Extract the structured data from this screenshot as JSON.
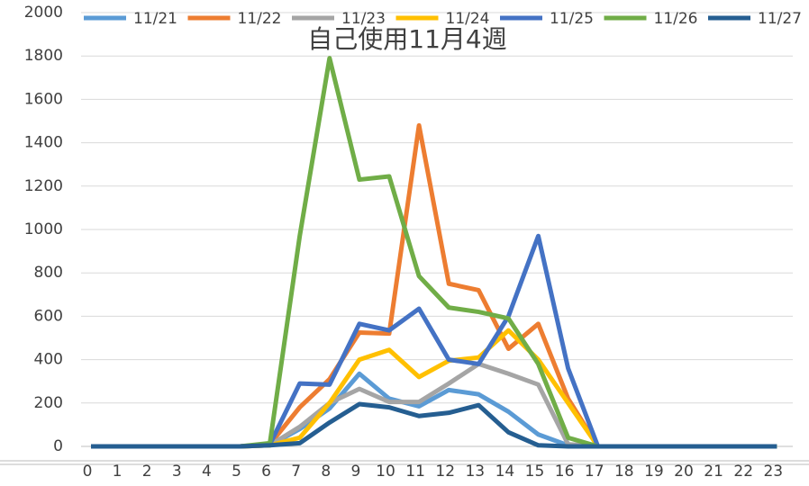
{
  "chart_data": {
    "type": "line",
    "title": "自己使用11月4週",
    "categories": [
      "0",
      "1",
      "2",
      "3",
      "4",
      "5",
      "6",
      "7",
      "8",
      "9",
      "10",
      "11",
      "12",
      "13",
      "14",
      "15",
      "16",
      "17",
      "18",
      "19",
      "20",
      "21",
      "22",
      "23"
    ],
    "series": [
      {
        "name": "11/21",
        "color": "#5b9bd5",
        "values": [
          0,
          0,
          0,
          0,
          0,
          0,
          5,
          80,
          175,
          335,
          220,
          185,
          260,
          240,
          160,
          55,
          5,
          0,
          0,
          0,
          0,
          0,
          0,
          0
        ]
      },
      {
        "name": "11/22",
        "color": "#ed7d31",
        "values": [
          0,
          0,
          0,
          0,
          0,
          0,
          10,
          180,
          310,
          525,
          520,
          1480,
          750,
          720,
          450,
          565,
          220,
          0,
          0,
          0,
          0,
          0,
          0,
          0
        ]
      },
      {
        "name": "11/23",
        "color": "#a5a5a5",
        "values": [
          0,
          0,
          0,
          0,
          0,
          0,
          5,
          90,
          200,
          265,
          205,
          205,
          290,
          380,
          335,
          285,
          10,
          0,
          0,
          0,
          0,
          0,
          0,
          0
        ]
      },
      {
        "name": "11/24",
        "color": "#ffc000",
        "values": [
          0,
          0,
          0,
          0,
          0,
          0,
          5,
          40,
          200,
          400,
          445,
          320,
          395,
          410,
          535,
          400,
          200,
          0,
          0,
          0,
          0,
          0,
          0,
          0
        ]
      },
      {
        "name": "11/25",
        "color": "#4472c4",
        "values": [
          0,
          0,
          0,
          0,
          0,
          0,
          10,
          290,
          285,
          565,
          535,
          635,
          400,
          380,
          600,
          970,
          360,
          0,
          0,
          0,
          0,
          0,
          0,
          0
        ]
      },
      {
        "name": "11/26",
        "color": "#70ad47",
        "values": [
          0,
          0,
          0,
          0,
          0,
          0,
          15,
          970,
          1790,
          1230,
          1245,
          785,
          640,
          620,
          590,
          380,
          40,
          0,
          0,
          0,
          0,
          0,
          0,
          0
        ]
      },
      {
        "name": "11/27",
        "color": "#255e91",
        "values": [
          0,
          0,
          0,
          0,
          0,
          0,
          5,
          15,
          110,
          195,
          180,
          140,
          155,
          190,
          65,
          5,
          0,
          0,
          0,
          0,
          0,
          0,
          0,
          0
        ]
      }
    ],
    "ylim": [
      0,
      2000
    ],
    "yticks": [
      0,
      200,
      400,
      600,
      800,
      1000,
      1200,
      1400,
      1600,
      1800,
      2000
    ],
    "grid": true
  }
}
